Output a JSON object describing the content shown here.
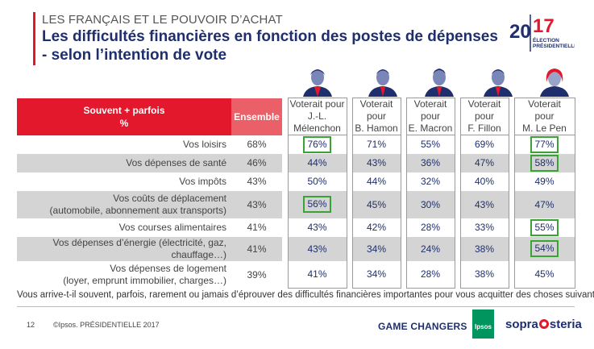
{
  "header": {
    "supertitle": "LES FRANÇAIS ET LE POUVOIR D’ACHAT",
    "title_line1": "Les difficultés financières en fonction des postes de dépenses",
    "title_line2": "- selon l’intention de vote"
  },
  "logo": {
    "year_a": "20",
    "year_b": "17",
    "caption1": "ÉLECTION",
    "caption2": "PRÉSIDENTIELLE"
  },
  "table": {
    "header_main_line1": "Souvent + parfois",
    "header_main_line2": "%",
    "header_ensemble": "Ensemble",
    "candidates": [
      {
        "l1": "Voterait pour",
        "l2": "J.-L.",
        "l3": "Mélenchon"
      },
      {
        "l1": "Voterait",
        "l2": "pour",
        "l3": "B. Hamon"
      },
      {
        "l1": "Voterait",
        "l2": "pour",
        "l3": "E. Macron"
      },
      {
        "l1": "Voterait",
        "l2": "pour",
        "l3": "F. Fillon"
      },
      {
        "l1": "Voterait",
        "l2": "pour",
        "l3": "M. Le Pen"
      }
    ],
    "rows": [
      {
        "l1": "Vos loisirs",
        "l2": "",
        "ens": "68%",
        "v": [
          "76%",
          "71%",
          "55%",
          "69%",
          "77%"
        ]
      },
      {
        "l1": "Vos dépenses de santé",
        "l2": "",
        "ens": "46%",
        "v": [
          "44%",
          "43%",
          "36%",
          "47%",
          "58%"
        ]
      },
      {
        "l1": "Vos impôts",
        "l2": "",
        "ens": "43%",
        "v": [
          "50%",
          "44%",
          "32%",
          "40%",
          "49%"
        ]
      },
      {
        "l1": "Vos coûts de déplacement",
        "l2": "(automobile, abonnement aux transports)",
        "ens": "43%",
        "v": [
          "56%",
          "45%",
          "30%",
          "43%",
          "47%"
        ]
      },
      {
        "l1": "Vos courses alimentaires",
        "l2": "",
        "ens": "41%",
        "v": [
          "43%",
          "42%",
          "28%",
          "33%",
          "55%"
        ]
      },
      {
        "l1": "Vos dépenses d’énergie (électricité, gaz, chauffage…)",
        "l2": "",
        "ens": "41%",
        "v": [
          "43%",
          "34%",
          "24%",
          "38%",
          "54%"
        ]
      },
      {
        "l1": "Vos dépenses de logement",
        "l2": "(loyer, emprunt immobilier, charges…)",
        "ens": "39%",
        "v": [
          "41%",
          "34%",
          "28%",
          "38%",
          "45%"
        ]
      }
    ]
  },
  "question": "Vous arrive-t-il souvent, parfois, rarement ou jamais d’éprouver des difficultés financières importantes pour vous acquitter des choses suivantes :",
  "footer": {
    "page": "12",
    "copyright": "©Ipsos.  PRÉSIDENTIELLE 2017",
    "game_changers": "GAME CHANGERS",
    "ipsos": "Ipsos",
    "sopra_a": "sopra",
    "sopra_b": "steria"
  },
  "colors": {
    "red": "#e3182d",
    "navy": "#1f2f6e",
    "highlight": "#3aa335",
    "shade": "#d4d4d4"
  }
}
